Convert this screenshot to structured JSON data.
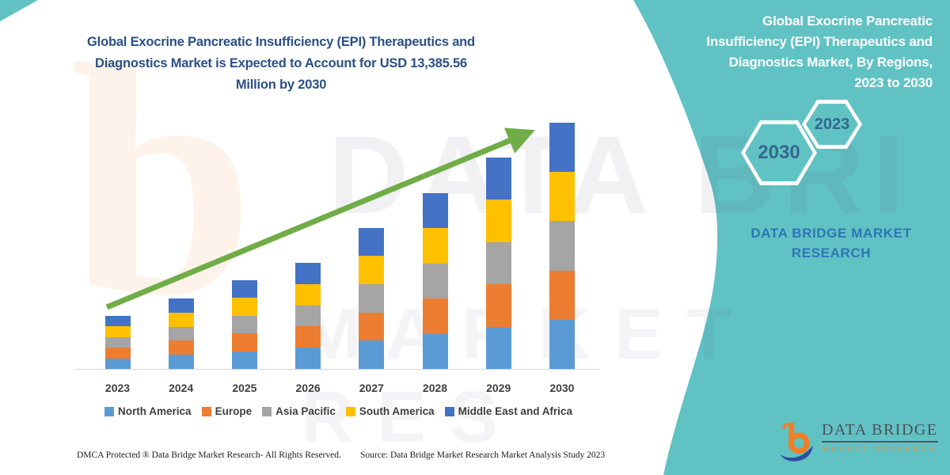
{
  "page": {
    "background": "#ffffff",
    "accent_teal": "#61C2C4",
    "arrow_green": "#70AD47"
  },
  "main": {
    "title": "Global Exocrine Pancreatic Insufficiency (EPI) Therapeutics and\nDiagnostics Market is Expected to Account for USD 13,385.56\nMillion by 2030",
    "title_color": "#2A5086"
  },
  "chart_data": {
    "type": "bar",
    "stacked": true,
    "unit": "USD Million",
    "title": "Global Exocrine Pancreatic Insufficiency (EPI) Therapeutics and Diagnostics Market is Expected to Account for USD 13,385.56 Million by 2030",
    "categories": [
      "2023",
      "2024",
      "2025",
      "2026",
      "2027",
      "2028",
      "2029",
      "2030"
    ],
    "series": [
      {
        "name": "North America",
        "color": "#5B9BD5",
        "values": [
          576.8,
          766.2,
          964.2,
          1153.6,
          1536.6,
          1911.0,
          2298.2,
          2677.11
        ]
      },
      {
        "name": "Europe",
        "color": "#ED7D31",
        "values": [
          576.8,
          766.2,
          964.2,
          1153.6,
          1536.6,
          1911.0,
          2298.2,
          2677.11
        ]
      },
      {
        "name": "Asia Pacific",
        "color": "#A5A5A5",
        "values": [
          576.8,
          766.2,
          964.2,
          1153.6,
          1536.6,
          1911.0,
          2298.2,
          2677.11
        ]
      },
      {
        "name": "South America",
        "color": "#FFC000",
        "values": [
          576.8,
          766.2,
          964.2,
          1153.6,
          1536.6,
          1911.0,
          2298.2,
          2677.11
        ]
      },
      {
        "name": "Middle East and Africa",
        "color": "#4472C4",
        "values": [
          576.8,
          766.2,
          964.2,
          1153.6,
          1536.6,
          1911.0,
          2298.2,
          2677.11
        ]
      }
    ],
    "totals": [
      2884,
      3831,
      4821,
      5768,
      7683,
      9555,
      11491,
      13385.56
    ],
    "ylim": [
      0,
      13385.56
    ],
    "grid": false,
    "y_axis_visible": false,
    "legend_position": "bottom",
    "annotation": "green growth arrow rising from 2023 to 2030"
  },
  "footer": {
    "dmca": "DMCA Protected ® Data Bridge Market Research-  All Rights Reserved.",
    "source": "Source: Data Bridge Market Research  Market Analysis Study 2023"
  },
  "side_panel": {
    "title": "Global Exocrine Pancreatic\nInsufficiency (EPI) Therapeutics and\nDiagnostics Market, By Regions,\n2023 to 2030",
    "hexagon_large": "2030",
    "hexagon_small": "2023",
    "brand_text": "DATA BRIDGE MARKET\nRESEARCH",
    "brand_color": "#2E75B6"
  },
  "logo": {
    "name": "DATA BRIDGE",
    "subtitle": "MARKET RESEARCH"
  },
  "watermarks": {
    "b_glyph": "b",
    "top_text": "DATA BRI",
    "bottom_text": "MARKET RES"
  }
}
